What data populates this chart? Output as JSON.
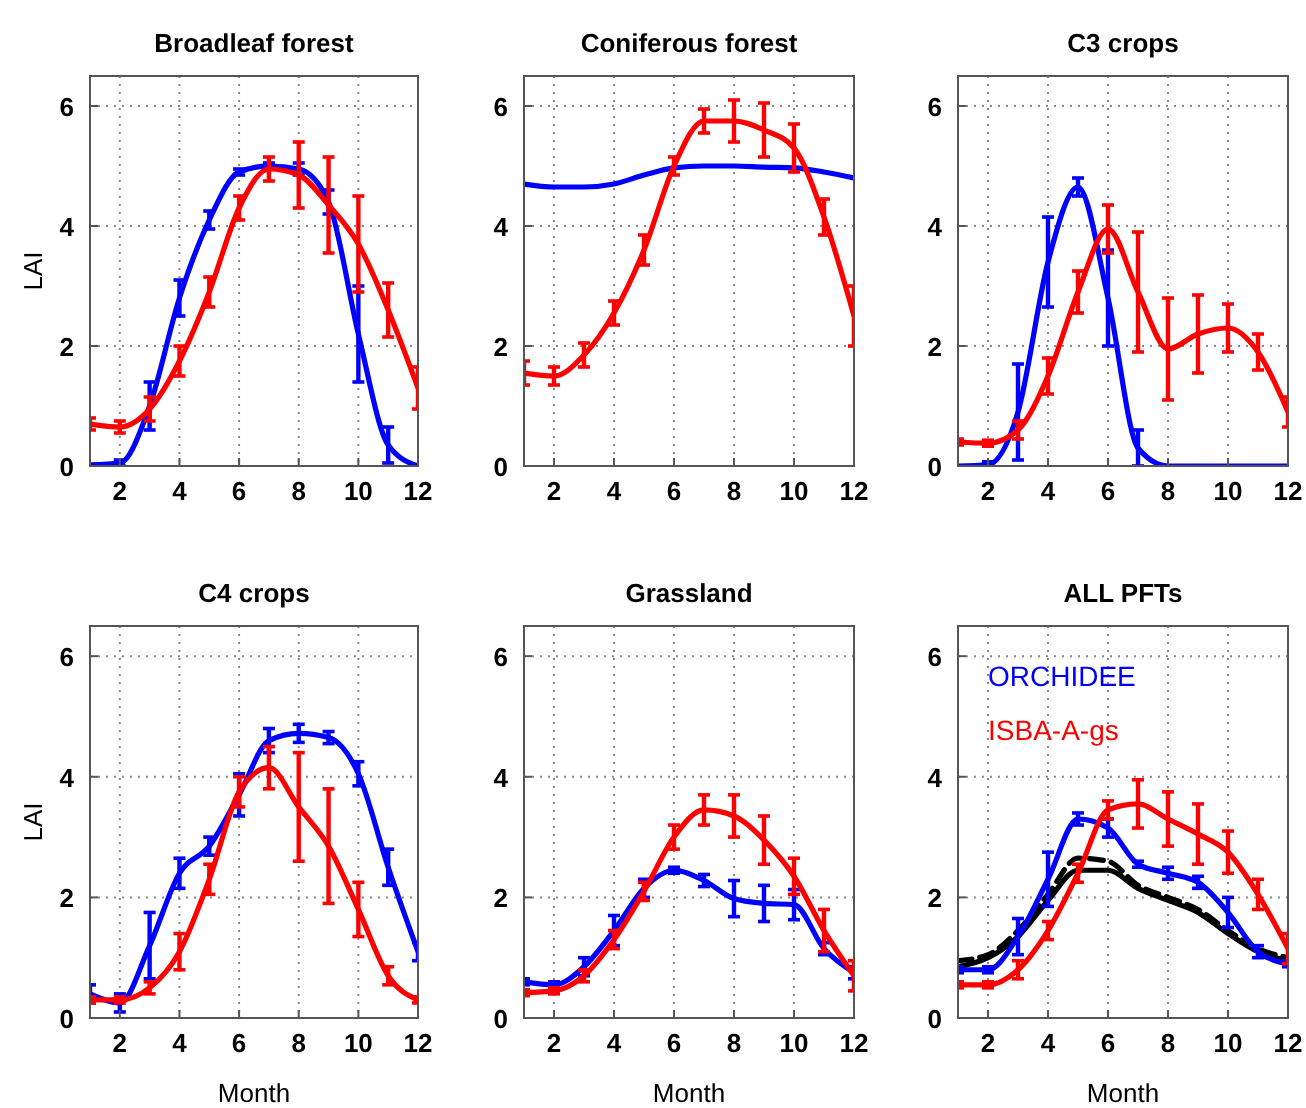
{
  "chart_data": [
    {
      "type": "line",
      "title": "Broadleaf forest",
      "ylabel": "LAI",
      "x": [
        1,
        2,
        3,
        4,
        5,
        6,
        7,
        8,
        9,
        10,
        11,
        12
      ],
      "xlim": [
        1,
        12
      ],
      "xticks": [
        2,
        4,
        6,
        8,
        10,
        12
      ],
      "ylim": [
        0,
        6.5
      ],
      "yticks": [
        0,
        2,
        4,
        6
      ],
      "grid": true,
      "series": [
        {
          "color": "#0000ff",
          "values": [
            0.02,
            0.05,
            1.0,
            2.8,
            4.1,
            4.9,
            5.0,
            4.95,
            4.4,
            2.2,
            0.35,
            0.0
          ],
          "errors": [
            null,
            0.05,
            0.4,
            0.3,
            0.15,
            0.05,
            0.05,
            0.1,
            0.2,
            0.8,
            0.3,
            null
          ]
        },
        {
          "color": "#ff0000",
          "values": [
            0.7,
            0.65,
            0.95,
            1.75,
            2.9,
            4.3,
            4.95,
            4.85,
            4.35,
            3.7,
            2.6,
            1.3
          ],
          "errors": [
            0.1,
            0.1,
            0.2,
            0.25,
            0.25,
            0.2,
            0.2,
            0.55,
            0.8,
            0.8,
            0.45,
            0.35
          ]
        }
      ]
    },
    {
      "type": "line",
      "title": "Coniferous forest",
      "x": [
        1,
        2,
        3,
        4,
        5,
        6,
        7,
        8,
        9,
        10,
        11,
        12
      ],
      "xlim": [
        1,
        12
      ],
      "xticks": [
        2,
        4,
        6,
        8,
        10,
        12
      ],
      "ylim": [
        0,
        6.5
      ],
      "yticks": [
        0,
        2,
        4,
        6
      ],
      "grid": true,
      "series": [
        {
          "color": "#0000ff",
          "values": [
            4.7,
            4.65,
            4.65,
            4.7,
            4.85,
            4.97,
            5.0,
            5.0,
            4.98,
            4.97,
            4.9,
            4.8
          ]
        },
        {
          "color": "#ff0000",
          "values": [
            1.55,
            1.5,
            1.85,
            2.55,
            3.6,
            5.0,
            5.75,
            5.75,
            5.6,
            5.3,
            4.15,
            2.5
          ],
          "errors": [
            0.2,
            0.15,
            0.2,
            0.2,
            0.25,
            0.15,
            0.2,
            0.35,
            0.45,
            0.4,
            0.3,
            0.5
          ]
        }
      ]
    },
    {
      "type": "line",
      "title": "C3 crops",
      "x": [
        1,
        2,
        3,
        4,
        5,
        6,
        7,
        8,
        9,
        10,
        11,
        12
      ],
      "xlim": [
        1,
        12
      ],
      "xticks": [
        2,
        4,
        6,
        8,
        10,
        12
      ],
      "ylim": [
        0,
        6.5
      ],
      "yticks": [
        0,
        2,
        4,
        6
      ],
      "grid": true,
      "series": [
        {
          "color": "#0000ff",
          "values": [
            0,
            0.02,
            0.9,
            3.4,
            4.65,
            2.8,
            0.3,
            0,
            0,
            0,
            0,
            0
          ],
          "errors": [
            null,
            0.05,
            0.8,
            0.75,
            0.15,
            0.8,
            0.3,
            null,
            null,
            null,
            null,
            null
          ]
        },
        {
          "color": "#ff0000",
          "values": [
            0.4,
            0.38,
            0.6,
            1.5,
            2.9,
            3.95,
            2.9,
            1.95,
            2.2,
            2.3,
            1.9,
            0.9
          ],
          "errors": [
            0.05,
            0.05,
            0.15,
            0.3,
            0.35,
            0.4,
            1.0,
            0.85,
            0.65,
            0.4,
            0.3,
            0.25
          ]
        }
      ]
    },
    {
      "type": "line",
      "title": "C4 crops",
      "xlabel": "Month",
      "ylabel": "LAI",
      "x": [
        1,
        2,
        3,
        4,
        5,
        6,
        7,
        8,
        9,
        10,
        11,
        12
      ],
      "xlim": [
        1,
        12
      ],
      "xticks": [
        2,
        4,
        6,
        8,
        10,
        12
      ],
      "ylim": [
        0,
        6.5
      ],
      "yticks": [
        0,
        2,
        4,
        6
      ],
      "grid": true,
      "series": [
        {
          "color": "#0000ff",
          "values": [
            0.4,
            0.25,
            1.2,
            2.4,
            2.85,
            3.7,
            4.6,
            4.72,
            4.65,
            4.05,
            2.5,
            1.1
          ],
          "errors": [
            0.15,
            0.15,
            0.55,
            0.25,
            0.15,
            0.35,
            0.2,
            0.15,
            0.1,
            0.2,
            0.3,
            0.15
          ]
        },
        {
          "color": "#ff0000",
          "values": [
            0.3,
            0.3,
            0.5,
            1.1,
            2.3,
            3.75,
            4.15,
            3.5,
            2.85,
            1.8,
            0.7,
            0.3
          ],
          "errors": [
            0.05,
            0.05,
            0.1,
            0.3,
            0.25,
            0.25,
            0.35,
            0.9,
            0.95,
            0.45,
            0.15,
            0.05
          ]
        }
      ]
    },
    {
      "type": "line",
      "title": "Grassland",
      "xlabel": "Month",
      "x": [
        1,
        2,
        3,
        4,
        5,
        6,
        7,
        8,
        9,
        10,
        11,
        12
      ],
      "xlim": [
        1,
        12
      ],
      "xticks": [
        2,
        4,
        6,
        8,
        10,
        12
      ],
      "ylim": [
        0,
        6.5
      ],
      "yticks": [
        0,
        2,
        4,
        6
      ],
      "grid": true,
      "series": [
        {
          "color": "#0000ff",
          "values": [
            0.6,
            0.55,
            0.85,
            1.45,
            2.15,
            2.45,
            2.28,
            1.98,
            1.9,
            1.88,
            1.15,
            0.75
          ],
          "errors": [
            0.05,
            0.05,
            0.15,
            0.25,
            0.15,
            0.05,
            0.1,
            0.3,
            0.3,
            0.25,
            0.1,
            0.1
          ]
        },
        {
          "color": "#ff0000",
          "values": [
            0.42,
            0.45,
            0.7,
            1.3,
            2.1,
            3.0,
            3.45,
            3.35,
            2.95,
            2.35,
            1.45,
            0.7
          ],
          "errors": [
            0.05,
            0.05,
            0.1,
            0.15,
            0.15,
            0.2,
            0.25,
            0.35,
            0.4,
            0.3,
            0.35,
            0.25
          ]
        }
      ]
    },
    {
      "type": "line",
      "title": "ALL PFTs",
      "xlabel": "Month",
      "x": [
        1,
        2,
        3,
        4,
        5,
        6,
        7,
        8,
        9,
        10,
        11,
        12
      ],
      "xlim": [
        1,
        12
      ],
      "xticks": [
        2,
        4,
        6,
        8,
        10,
        12
      ],
      "ylim": [
        0,
        6.5
      ],
      "yticks": [
        0,
        2,
        4,
        6
      ],
      "grid": true,
      "legend": "top left",
      "series": [
        {
          "color": "#000000",
          "line_style": "solid",
          "values": [
            0.85,
            1.0,
            1.35,
            1.95,
            2.45,
            2.45,
            2.15,
            1.95,
            1.75,
            1.4,
            1.1,
            0.95
          ]
        },
        {
          "color": "#000000",
          "line_style": "dashed",
          "values": [
            0.95,
            1.05,
            1.45,
            2.05,
            2.65,
            2.6,
            2.2,
            2.0,
            1.8,
            1.45,
            1.15,
            1.0
          ]
        },
        {
          "name": "ORCHIDEE",
          "color": "#0000ff",
          "values": [
            0.8,
            0.8,
            1.35,
            2.3,
            3.3,
            3.15,
            2.55,
            2.4,
            2.25,
            1.75,
            1.1,
            0.9
          ],
          "errors": [
            0.05,
            0.05,
            0.3,
            0.45,
            0.1,
            0.15,
            0.05,
            0.1,
            0.1,
            0.25,
            0.1,
            0.05
          ]
        },
        {
          "name": "ISBA-A-gs",
          "color": "#ff0000",
          "values": [
            0.55,
            0.55,
            0.8,
            1.45,
            2.4,
            3.45,
            3.55,
            3.3,
            3.05,
            2.75,
            2.05,
            1.15
          ],
          "errors": [
            0.05,
            0.05,
            0.15,
            0.15,
            0.15,
            0.15,
            0.4,
            0.45,
            0.5,
            0.35,
            0.25,
            0.25
          ]
        }
      ]
    }
  ]
}
